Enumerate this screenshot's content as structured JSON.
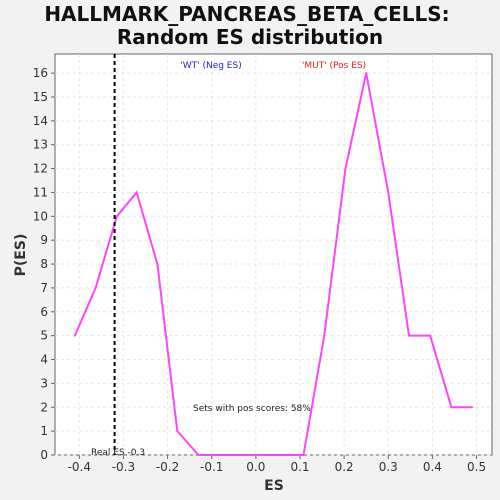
{
  "chart_data": {
    "type": "line",
    "title_lines": [
      "HALLMARK_PANCREAS_BETA_CELLS:",
      "Random ES distribution"
    ],
    "xlabel": "ES",
    "ylabel": "P(ES)",
    "xlim": [
      -0.455,
      0.535
    ],
    "ylim": [
      0,
      16.8
    ],
    "x_ticks": [
      -0.4,
      -0.3,
      -0.2,
      -0.1,
      0.0,
      0.1,
      0.2,
      0.3,
      0.4,
      0.5
    ],
    "x_tick_labels": [
      "-0.4",
      "-0.3",
      "-0.2",
      "-0.1",
      "0.0",
      "0.1",
      "0.2",
      "0.3",
      "0.4",
      "0.5"
    ],
    "y_ticks": [
      0,
      1,
      2,
      3,
      4,
      5,
      6,
      7,
      8,
      9,
      10,
      11,
      12,
      13,
      14,
      15,
      16
    ],
    "y_tick_labels": [
      "0",
      "1",
      "2",
      "3",
      "4",
      "5",
      "6",
      "7",
      "8",
      "9",
      "10",
      "11",
      "12",
      "13",
      "14",
      "15",
      "16"
    ],
    "grid": true,
    "series": [
      {
        "color": "#ff44ff",
        "x": [
          -0.41,
          -0.363,
          -0.315,
          -0.27,
          -0.223,
          -0.178,
          -0.13,
          -0.083,
          -0.037,
          0.01,
          0.057,
          0.108,
          0.155,
          0.203,
          0.25,
          0.3,
          0.347,
          0.395,
          0.443,
          0.49
        ],
        "y": [
          5,
          7,
          10,
          11,
          8,
          1,
          0,
          0,
          0,
          0,
          0,
          0,
          5,
          12,
          16,
          11,
          5,
          5,
          2,
          2
        ]
      }
    ],
    "real_es": {
      "x": -0.32,
      "label": "Real ES -0.3"
    },
    "annotations": {
      "neg_label": "'WT' (Neg ES)",
      "pos_label": "'MUT' (Pos ES)",
      "pos_scores_text": "Sets with pos scores: 58%"
    },
    "colors": {
      "neg": "#2222cc",
      "pos": "#dd2222",
      "line": "#ff44ff",
      "grid": "#e6e6e6",
      "plot_bg": "#ffffff",
      "page_bg": "#f2f2f2"
    }
  }
}
